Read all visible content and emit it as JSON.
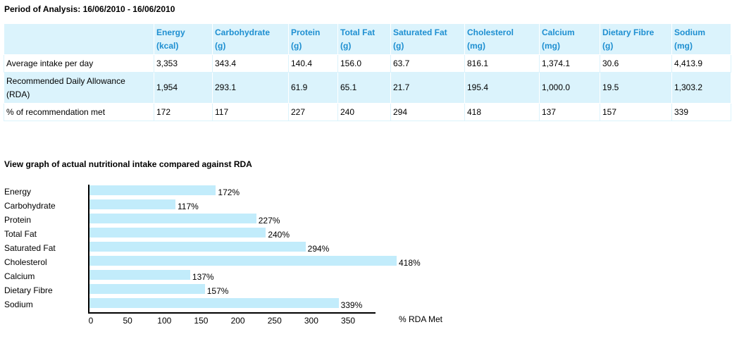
{
  "period": "Period of Analysis: 16/06/2010 - 16/06/2010",
  "table": {
    "headers": [
      {
        "name": "Energy",
        "unit": "(kcal)"
      },
      {
        "name": "Carbohydrate",
        "unit": "(g)"
      },
      {
        "name": "Protein",
        "unit": "(g)"
      },
      {
        "name": "Total Fat",
        "unit": "(g)"
      },
      {
        "name": "Saturated Fat",
        "unit": "(g)"
      },
      {
        "name": "Cholesterol",
        "unit": "(mg)"
      },
      {
        "name": "Calcium",
        "unit": "(mg)"
      },
      {
        "name": "Dietary Fibre",
        "unit": "(g)"
      },
      {
        "name": "Sodium",
        "unit": "(mg)"
      }
    ],
    "rows": [
      {
        "label": "Average intake per day",
        "values": [
          "3,353",
          "343.4",
          "140.4",
          "156.0",
          "63.7",
          "816.1",
          "1,374.1",
          "30.6",
          "4,413.9"
        ]
      },
      {
        "label_line1": "Recommended Daily Allowance",
        "label_line2": "(RDA)",
        "values": [
          "1,954",
          "293.1",
          "61.9",
          "65.1",
          "21.7",
          "195.4",
          "1,000.0",
          "19.5",
          "1,303.2"
        ]
      },
      {
        "label": "% of recommendation met",
        "values": [
          "172",
          "117",
          "227",
          "240",
          "294",
          "418",
          "137",
          "157",
          "339"
        ]
      }
    ]
  },
  "graph_title": "View graph of actual nutritional intake compared against RDA",
  "colors": {
    "header_text": "#1e8fd1",
    "row_bg": "#dbf3fc",
    "bar": "#c2ecfb"
  },
  "chart_data": {
    "type": "bar",
    "orientation": "horizontal",
    "categories": [
      "Energy",
      "Carbohydrate",
      "Protein",
      "Total Fat",
      "Saturated Fat",
      "Cholesterol",
      "Calcium",
      "Dietary Fibre",
      "Sodium"
    ],
    "values": [
      172,
      117,
      227,
      240,
      294,
      418,
      137,
      157,
      339
    ],
    "value_labels": [
      "172%",
      "117%",
      "227%",
      "240%",
      "294%",
      "418%",
      "137%",
      "157%",
      "339%"
    ],
    "xticks": [
      0,
      50,
      100,
      150,
      200,
      250,
      300,
      350
    ],
    "xlabel": "% RDA Met",
    "xlim": [
      0,
      390
    ],
    "grid": false
  }
}
